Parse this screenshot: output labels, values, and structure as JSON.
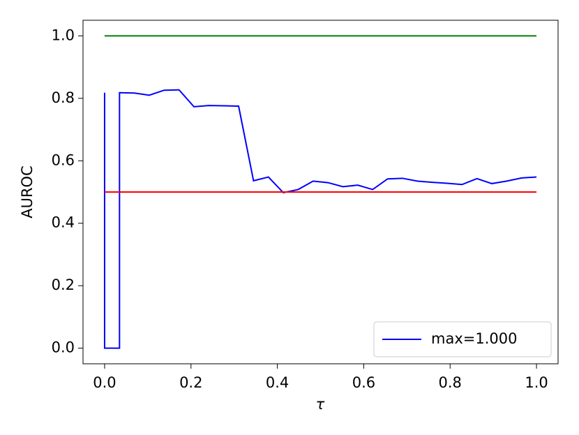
{
  "chart_data": {
    "type": "line",
    "x_label": "τ",
    "y_label": "AUROC",
    "x": [
      0,
      0,
      0.0345,
      0.0345,
      0.069,
      0.1034,
      0.1379,
      0.1724,
      0.2069,
      0.2414,
      0.2759,
      0.3103,
      0.3448,
      0.3793,
      0.4138,
      0.4483,
      0.4828,
      0.5172,
      0.5517,
      0.5862,
      0.6207,
      0.6552,
      0.6897,
      0.7241,
      0.7586,
      0.7931,
      0.8276,
      0.8621,
      0.8966,
      0.931,
      0.9655,
      1.0
    ],
    "series": [
      {
        "name": "max=1.000",
        "color": "#0000ff",
        "values": [
          0.818,
          0.0,
          0.0,
          0.818,
          0.817,
          0.81,
          0.826,
          0.827,
          0.773,
          0.777,
          0.776,
          0.775,
          0.536,
          0.548,
          0.498,
          0.508,
          0.535,
          0.53,
          0.517,
          0.522,
          0.508,
          0.542,
          0.544,
          0.535,
          0.531,
          0.528,
          0.524,
          0.543,
          0.527,
          0.535,
          0.545,
          0.548
        ]
      },
      {
        "color": "#008000",
        "x": [
          0,
          1.0
        ],
        "values": [
          1.0,
          1.0
        ]
      },
      {
        "color": "#ff0000",
        "x": [
          0,
          1.0
        ],
        "values": [
          0.5,
          0.5
        ]
      }
    ],
    "xlim": [
      -0.05,
      1.05
    ],
    "ylim": [
      -0.05,
      1.05
    ],
    "xticks": [
      {
        "value": 0,
        "label": "0.0"
      },
      {
        "value": 0.2,
        "label": "0.2"
      },
      {
        "value": 0.4,
        "label": "0.4"
      },
      {
        "value": 0.6,
        "label": "0.6"
      },
      {
        "value": 0.8,
        "label": "0.8"
      },
      {
        "value": 1.0,
        "label": "1.0"
      }
    ],
    "yticks": [
      {
        "value": 0,
        "label": "0.0"
      },
      {
        "value": 0.2,
        "label": "0.2"
      },
      {
        "value": 0.4,
        "label": "0.4"
      },
      {
        "value": 0.6,
        "label": "0.6"
      },
      {
        "value": 0.8,
        "label": "0.8"
      },
      {
        "value": 1.0,
        "label": "1.0"
      }
    ],
    "grid": false,
    "legend": "lower right"
  }
}
